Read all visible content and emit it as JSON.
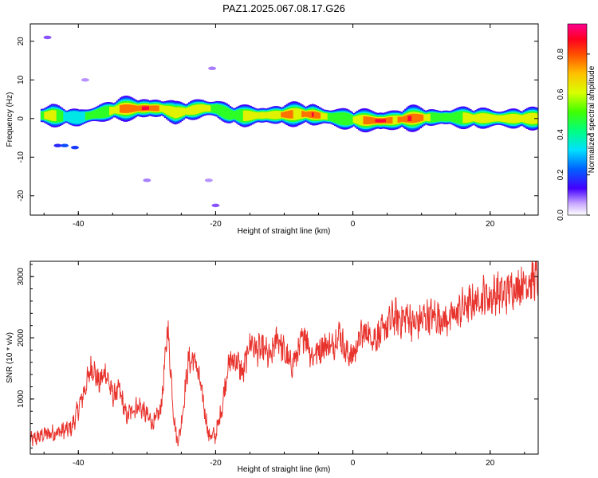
{
  "title": "PAZ1.2025.067.08.17.G26",
  "chart_data": [
    {
      "type": "heatmap",
      "xlabel": "Height of straight line (km)",
      "ylabel": "Frequency (Hz)",
      "xlim": [
        -47,
        27
      ],
      "ylim": [
        -25,
        24.5
      ],
      "xticks": [
        -40,
        -20,
        0,
        20
      ],
      "yticks": [
        -20,
        -10,
        0,
        10,
        20
      ],
      "grid": false,
      "ridge": {
        "x": [
          -45.5,
          -44,
          -42,
          -40,
          -38,
          -36,
          -34,
          -32,
          -30,
          -28,
          -26,
          -24,
          -22,
          -20,
          -18,
          -16,
          -14,
          -12,
          -10,
          -8,
          -6,
          -4,
          -2,
          0,
          2,
          4,
          6,
          8,
          10,
          12,
          14,
          16,
          18,
          20,
          22,
          24,
          27
        ],
        "freq": [
          0.8,
          0.8,
          0.5,
          0.2,
          1.0,
          1.8,
          2.5,
          2.6,
          2.7,
          2.6,
          1.5,
          2.0,
          2.7,
          2.5,
          1.0,
          0.7,
          0.8,
          0.9,
          1.0,
          1.2,
          1.0,
          0.5,
          0.0,
          -0.3,
          -0.5,
          -0.6,
          -0.4,
          0.0,
          0.2,
          0.3,
          0.3,
          0.2,
          0.1,
          0.1,
          0.0,
          0.0,
          0.0
        ],
        "amplitude": [
          0.55,
          0.7,
          0.4,
          0.35,
          0.55,
          0.55,
          0.75,
          0.85,
          0.9,
          0.7,
          0.6,
          0.65,
          0.7,
          0.5,
          0.55,
          0.6,
          0.6,
          0.65,
          0.8,
          0.7,
          0.9,
          0.6,
          0.55,
          0.6,
          0.8,
          0.95,
          0.7,
          0.9,
          0.75,
          0.5,
          0.55,
          0.6,
          0.65,
          0.6,
          0.6,
          0.7,
          0.6
        ]
      },
      "colorbar": {
        "label": "Normalized spectral amplitude",
        "range": [
          0,
          0.95
        ],
        "ticks": [
          0.0,
          0.2,
          0.4,
          0.6,
          0.8
        ]
      }
    },
    {
      "type": "line",
      "xlabel": "Height of straight line (km)",
      "ylabel": "SNR (10 * v/v)",
      "xlim": [
        -47,
        27
      ],
      "ylim": [
        100,
        3250
      ],
      "xticks": [
        -40,
        -20,
        0,
        20
      ],
      "yticks": [
        1000,
        2000,
        3000
      ],
      "grid": false,
      "color": "#e8322c",
      "series": [
        {
          "x": [
            -47,
            -45,
            -43,
            -41,
            -39.5,
            -38,
            -37,
            -36,
            -35,
            -34,
            -33,
            -32,
            -31,
            -30,
            -29,
            -28,
            -27.5,
            -27,
            -26.5,
            -26,
            -25.5,
            -25,
            -24,
            -23,
            -22,
            -21,
            -20,
            -19,
            -18.5,
            -18,
            -17,
            -16,
            -15,
            -14,
            -13,
            -12,
            -11,
            -10,
            -9,
            -8,
            -7,
            -6,
            -5,
            -4,
            -3,
            -2,
            -1,
            0,
            1,
            2,
            3,
            4,
            5,
            6,
            7,
            8,
            9,
            10,
            11,
            12,
            13,
            14,
            15,
            16,
            17,
            18,
            19,
            20,
            21,
            22,
            23,
            24,
            25,
            26,
            27
          ],
          "y": [
            320,
            420,
            460,
            520,
            1000,
            1550,
            1250,
            1450,
            1050,
            1150,
            700,
            850,
            880,
            720,
            600,
            820,
            1400,
            2200,
            1400,
            600,
            300,
            600,
            1600,
            1650,
            1100,
            400,
            400,
            900,
            1350,
            1600,
            1650,
            1400,
            1950,
            1800,
            1800,
            1650,
            2050,
            1750,
            1550,
            1750,
            2100,
            1700,
            1800,
            1900,
            1850,
            2100,
            1750,
            1700,
            2000,
            2100,
            2000,
            2050,
            2200,
            2350,
            2300,
            2350,
            2200,
            2300,
            2350,
            2350,
            2300,
            2300,
            2400,
            2500,
            2550,
            2600,
            2700,
            2650,
            2750,
            2700,
            2800,
            2850,
            2900,
            2950,
            3000
          ]
        }
      ]
    }
  ]
}
